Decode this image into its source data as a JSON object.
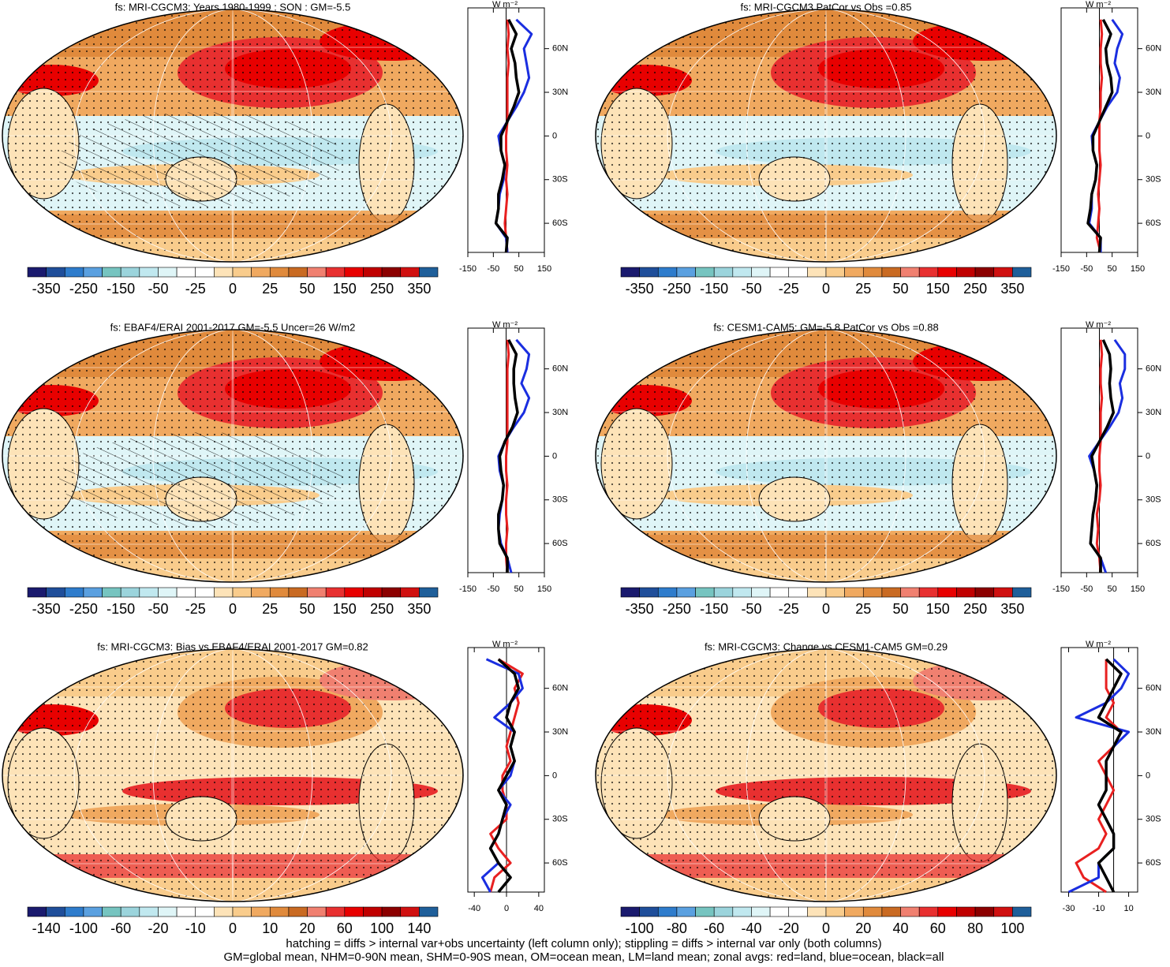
{
  "colorbar_colors": [
    "#1a1a6e",
    "#1f4e9a",
    "#2e7ccc",
    "#5aa0e0",
    "#76c4c0",
    "#9bd4dc",
    "#c0e8ef",
    "#dff5f7",
    "#ffffff",
    "#ffffff",
    "#fde3b8",
    "#f9cc8c",
    "#f0a960",
    "#e08a3c",
    "#c96a22",
    "#f08070",
    "#e83030",
    "#e80000",
    "#c00000",
    "#8c0000",
    "#d01010",
    "#1f5f9a"
  ],
  "units": "W m⁻²",
  "notes": [
    "hatching = diffs > internal var+obs uncertainty (left column only); stippling = diffs > internal var only (both columns)",
    "GM=global mean, NHM=0-90N mean, SHM=0-90S mean, OM=ocean mean, LM=land mean; zonal avgs: red=land, blue=ocean, black=all"
  ],
  "chart_data": [
    {
      "type": "line",
      "title": "fs: MRI-CGCM3: Years 1980-1999 : SON : GM=-5.5",
      "lat": [
        -80,
        -70,
        -60,
        -50,
        -40,
        -30,
        -20,
        -10,
        0,
        10,
        20,
        30,
        40,
        50,
        60,
        70,
        80
      ],
      "xlim": [
        -150,
        150
      ],
      "xticks": [
        -150,
        -50,
        50,
        150
      ],
      "ylim": [
        -80,
        88
      ],
      "yticks": [
        {
          "value": 60,
          "label": "60N"
        },
        {
          "value": 30,
          "label": "30N"
        },
        0,
        {
          "value": -30,
          "label": "30S"
        },
        {
          "value": -60,
          "label": "60S"
        }
      ],
      "series": [
        {
          "color": "#e82020",
          "values": [
            5,
            0,
            -5,
            0,
            5,
            0,
            5,
            0,
            0,
            5,
            5,
            5,
            5,
            10,
            5,
            10,
            5
          ]
        },
        {
          "color": "#1a2ee0",
          "values": [
            5,
            0,
            -40,
            -30,
            -25,
            -10,
            -5,
            -20,
            -30,
            5,
            40,
            70,
            90,
            80,
            70,
            100,
            40
          ]
        },
        {
          "color": "#000000",
          "values": [
            0,
            5,
            -40,
            -30,
            -30,
            -15,
            -5,
            -20,
            -20,
            5,
            30,
            50,
            40,
            35,
            20,
            40,
            10
          ]
        }
      ],
      "colorbar_ticks": [
        -350,
        -250,
        -150,
        -50,
        -25,
        0,
        25,
        50,
        150,
        250,
        350
      ]
    },
    {
      "type": "line",
      "title": "fs: MRI-CGCM3 PatCor vs Obs =0.85",
      "lat": [
        -80,
        -70,
        -60,
        -50,
        -40,
        -30,
        -20,
        -10,
        0,
        10,
        20,
        30,
        40,
        50,
        60,
        70,
        80
      ],
      "xlim": [
        -150,
        150
      ],
      "xticks": [
        -150,
        -50,
        50,
        150
      ],
      "ylim": [
        -80,
        88
      ],
      "yticks": [
        {
          "value": 60,
          "label": "60N"
        },
        {
          "value": 30,
          "label": "30N"
        },
        0,
        {
          "value": -30,
          "label": "30S"
        },
        {
          "value": -60,
          "label": "60S"
        }
      ],
      "series": [
        {
          "color": "#e82020",
          "values": [
            5,
            -10,
            -5,
            0,
            -5,
            0,
            5,
            0,
            0,
            0,
            5,
            5,
            10,
            5,
            5,
            10,
            5
          ]
        },
        {
          "color": "#1a2ee0",
          "values": [
            5,
            5,
            -40,
            -30,
            -30,
            -15,
            -10,
            -25,
            -30,
            0,
            30,
            70,
            80,
            60,
            70,
            90,
            50
          ]
        },
        {
          "color": "#000000",
          "values": [
            0,
            5,
            -45,
            -35,
            -30,
            -15,
            -10,
            -25,
            -25,
            0,
            25,
            50,
            45,
            30,
            25,
            45,
            15
          ]
        }
      ],
      "colorbar_ticks": [
        -350,
        -250,
        -150,
        -50,
        -25,
        0,
        25,
        50,
        150,
        250,
        350
      ]
    },
    {
      "type": "line",
      "title": "fs: EBAF4/ERAI 2001-2017 GM=-5.5 Uncer=26 W/m2",
      "lat": [
        -80,
        -70,
        -60,
        -50,
        -40,
        -30,
        -20,
        -10,
        0,
        10,
        20,
        30,
        40,
        50,
        60,
        70,
        80
      ],
      "xlim": [
        -150,
        150
      ],
      "xticks": [
        -150,
        -50,
        50,
        150
      ],
      "ylim": [
        -80,
        88
      ],
      "yticks": [
        {
          "value": 60,
          "label": "60N"
        },
        {
          "value": 30,
          "label": "30N"
        },
        0,
        {
          "value": -30,
          "label": "30S"
        },
        {
          "value": -60,
          "label": "60S"
        }
      ],
      "series": [
        {
          "color": "#e82020",
          "values": [
            5,
            0,
            0,
            5,
            0,
            0,
            5,
            0,
            0,
            5,
            5,
            5,
            5,
            5,
            5,
            10,
            5
          ]
        },
        {
          "color": "#1a2ee0",
          "values": [
            20,
            5,
            -20,
            -30,
            -25,
            -15,
            -10,
            -25,
            -30,
            -5,
            30,
            70,
            90,
            60,
            80,
            90,
            40
          ]
        },
        {
          "color": "#000000",
          "values": [
            5,
            5,
            -25,
            -30,
            -30,
            -15,
            -10,
            -20,
            -25,
            -5,
            25,
            45,
            35,
            30,
            30,
            40,
            10
          ]
        }
      ],
      "colorbar_ticks": [
        -350,
        -250,
        -150,
        -50,
        -25,
        0,
        25,
        50,
        150,
        250,
        350
      ]
    },
    {
      "type": "line",
      "title": "fs: CESM1-CAM5: GM=-5.8 PatCor vs Obs =0.88",
      "lat": [
        -80,
        -70,
        -60,
        -50,
        -40,
        -30,
        -20,
        -10,
        0,
        10,
        20,
        30,
        40,
        50,
        60,
        70,
        80
      ],
      "xlim": [
        -150,
        150
      ],
      "xticks": [
        -150,
        -50,
        50,
        150
      ],
      "ylim": [
        -80,
        88
      ],
      "yticks": [
        {
          "value": 60,
          "label": "60N"
        },
        {
          "value": 30,
          "label": "30N"
        },
        0,
        {
          "value": -30,
          "label": "30S"
        },
        {
          "value": -60,
          "label": "60S"
        }
      ],
      "series": [
        {
          "color": "#e82020",
          "values": [
            5,
            0,
            -10,
            -5,
            -10,
            0,
            5,
            0,
            0,
            5,
            5,
            5,
            10,
            5,
            5,
            10,
            5
          ]
        },
        {
          "color": "#1a2ee0",
          "values": [
            25,
            5,
            -35,
            -30,
            -25,
            -15,
            -10,
            -20,
            -40,
            0,
            40,
            75,
            90,
            80,
            100,
            100,
            60
          ]
        },
        {
          "color": "#000000",
          "values": [
            5,
            5,
            -35,
            -30,
            -25,
            -15,
            -10,
            -20,
            -30,
            0,
            30,
            55,
            45,
            40,
            45,
            40,
            15
          ]
        }
      ],
      "colorbar_ticks": [
        -350,
        -250,
        -150,
        -50,
        -25,
        0,
        25,
        50,
        150,
        250,
        350
      ]
    },
    {
      "type": "line",
      "title": "fs: MRI-CGCM3: Bias vs EBAF4/ERAI 2001-2017  GM=0.82",
      "lat": [
        -80,
        -70,
        -60,
        -50,
        -40,
        -30,
        -20,
        -10,
        0,
        10,
        20,
        30,
        40,
        50,
        60,
        70,
        80
      ],
      "xlim": [
        -48,
        47
      ],
      "xticks": [
        -40,
        0,
        40
      ],
      "ylim": [
        -80,
        88
      ],
      "yticks": [
        {
          "value": 60,
          "label": "60N"
        },
        {
          "value": 30,
          "label": "30N"
        },
        0,
        {
          "value": -30,
          "label": "30S"
        },
        {
          "value": -60,
          "label": "60S"
        }
      ],
      "series": [
        {
          "color": "#e82020",
          "values": [
            -20,
            -15,
            5,
            -10,
            -20,
            0,
            0,
            -5,
            -5,
            5,
            0,
            5,
            10,
            15,
            10,
            20,
            -10
          ]
        },
        {
          "color": "#1a2ee0",
          "values": [
            -20,
            -30,
            -10,
            -20,
            -10,
            -5,
            5,
            -10,
            5,
            10,
            5,
            10,
            -15,
            5,
            20,
            15,
            -25
          ]
        },
        {
          "color": "#000000",
          "values": [
            -10,
            5,
            -10,
            -20,
            -10,
            -5,
            0,
            -10,
            0,
            10,
            5,
            10,
            0,
            5,
            15,
            10,
            -10
          ]
        }
      ],
      "colorbar_ticks": [
        -140,
        -100,
        -60,
        -20,
        -10,
        0,
        10,
        20,
        60,
        100,
        140
      ]
    },
    {
      "type": "line",
      "title": "fs: MRI-CGCM3: Change vs CESM1-CAM5 GM=0.29",
      "lat": [
        -80,
        -70,
        -60,
        -50,
        -40,
        -30,
        -20,
        -10,
        0,
        10,
        20,
        30,
        40,
        50,
        60,
        70,
        80
      ],
      "xlim": [
        -35,
        16
      ],
      "xticks": [
        -30,
        -10,
        10
      ],
      "ylim": [
        -80,
        88
      ],
      "yticks": [
        {
          "value": 60,
          "label": "60N"
        },
        {
          "value": 30,
          "label": "30N"
        },
        0,
        {
          "value": -30,
          "label": "30S"
        },
        {
          "value": -60,
          "label": "60S"
        }
      ],
      "series": [
        {
          "color": "#e82020",
          "values": [
            -5,
            -20,
            -25,
            -10,
            -5,
            -10,
            -5,
            0,
            -5,
            -10,
            0,
            5,
            -5,
            0,
            -5,
            -5,
            -5
          ]
        },
        {
          "color": "#1a2ee0",
          "values": [
            -30,
            -10,
            -10,
            0,
            0,
            -5,
            -10,
            -5,
            -5,
            -5,
            0,
            10,
            -25,
            -5,
            5,
            10,
            0
          ]
        },
        {
          "color": "#000000",
          "values": [
            0,
            -5,
            -10,
            0,
            0,
            -5,
            -10,
            -5,
            -5,
            -5,
            0,
            5,
            -10,
            -5,
            0,
            5,
            -5
          ]
        }
      ],
      "colorbar_ticks": [
        -100,
        -80,
        -60,
        -40,
        -20,
        0,
        20,
        40,
        60,
        80,
        100
      ]
    }
  ]
}
